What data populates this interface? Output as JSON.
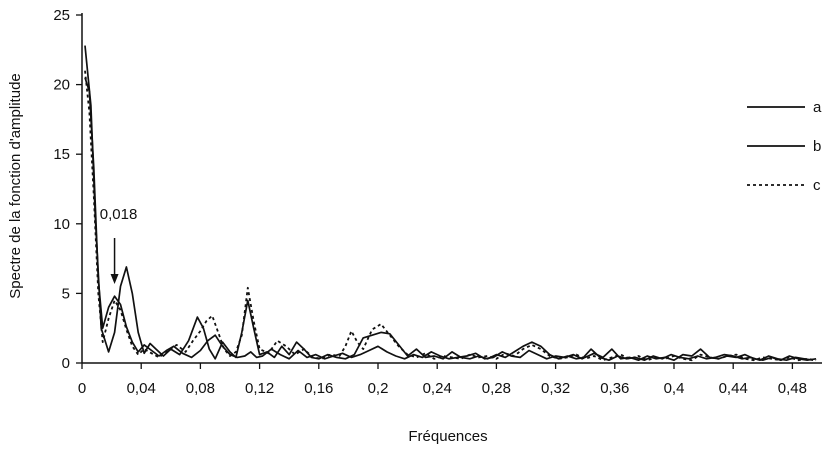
{
  "chart_data": {
    "type": "line",
    "title": "",
    "xlabel": "Fréquences",
    "ylabel": "Spectre de la fonction d'amplitude",
    "xlim": [
      0,
      0.5
    ],
    "ylim": [
      0,
      25
    ],
    "grid": false,
    "legend_position": "right",
    "x_ticks": [
      {
        "value": 0,
        "label": "0"
      },
      {
        "value": 0.04,
        "label": "0,04"
      },
      {
        "value": 0.08,
        "label": "0,08"
      },
      {
        "value": 0.12,
        "label": "0,12"
      },
      {
        "value": 0.16,
        "label": "0,16"
      },
      {
        "value": 0.2,
        "label": "0,2"
      },
      {
        "value": 0.24,
        "label": "0,24"
      },
      {
        "value": 0.28,
        "label": "0,28"
      },
      {
        "value": 0.32,
        "label": "0,32"
      },
      {
        "value": 0.36,
        "label": "0,36"
      },
      {
        "value": 0.4,
        "label": "0,4"
      },
      {
        "value": 0.44,
        "label": "0,44"
      },
      {
        "value": 0.48,
        "label": "0,48"
      }
    ],
    "y_ticks": [
      {
        "value": 0,
        "label": "0"
      },
      {
        "value": 5,
        "label": "5"
      },
      {
        "value": 10,
        "label": "10"
      },
      {
        "value": 15,
        "label": "15"
      },
      {
        "value": 20,
        "label": "20"
      },
      {
        "value": 25,
        "label": "25"
      }
    ],
    "annotation": {
      "label": "0,018",
      "x": 0.022,
      "y": 5.6
    },
    "series": [
      {
        "name": "a",
        "style": "solid",
        "color": "#111111",
        "x": [
          0.002,
          0.006,
          0.009,
          0.013,
          0.018,
          0.022,
          0.026,
          0.03,
          0.034,
          0.038,
          0.042,
          0.046,
          0.05,
          0.055,
          0.06,
          0.066,
          0.072,
          0.078,
          0.082,
          0.086,
          0.09,
          0.095,
          0.1,
          0.104,
          0.108,
          0.112,
          0.116,
          0.12,
          0.125,
          0.13,
          0.135,
          0.14,
          0.145,
          0.15,
          0.155,
          0.16,
          0.166,
          0.172,
          0.178,
          0.184,
          0.19,
          0.196,
          0.202,
          0.208,
          0.214,
          0.22,
          0.226,
          0.232,
          0.238,
          0.244,
          0.25,
          0.256,
          0.262,
          0.268,
          0.274,
          0.28,
          0.286,
          0.292,
          0.298,
          0.304,
          0.31,
          0.316,
          0.322,
          0.328,
          0.334,
          0.34,
          0.346,
          0.352,
          0.358,
          0.364,
          0.37,
          0.376,
          0.382,
          0.388,
          0.394,
          0.4,
          0.406,
          0.412,
          0.418,
          0.424,
          0.43,
          0.436,
          0.442,
          0.448,
          0.454,
          0.46,
          0.466,
          0.472,
          0.478,
          0.484,
          0.49,
          0.496
        ],
        "values": [
          22.8,
          18.5,
          10.5,
          2.5,
          0.8,
          2.2,
          5.5,
          6.9,
          5.0,
          2.2,
          0.7,
          1.4,
          1.0,
          0.5,
          1.0,
          0.6,
          1.6,
          3.3,
          2.5,
          1.0,
          0.3,
          1.5,
          0.8,
          0.4,
          2.2,
          4.5,
          2.5,
          0.6,
          0.8,
          0.4,
          1.2,
          0.6,
          1.5,
          1.0,
          0.4,
          0.3,
          0.6,
          0.4,
          0.3,
          0.6,
          1.8,
          2.0,
          2.2,
          2.1,
          1.3,
          0.5,
          1.0,
          0.4,
          0.5,
          0.3,
          0.8,
          0.4,
          0.3,
          0.5,
          0.3,
          0.6,
          0.4,
          0.8,
          1.2,
          1.5,
          1.2,
          0.6,
          0.3,
          0.5,
          0.3,
          0.4,
          0.7,
          0.4,
          1.0,
          0.3,
          0.4,
          0.2,
          0.5,
          0.3,
          0.4,
          0.2,
          0.6,
          0.5,
          1.0,
          0.4,
          0.3,
          0.5,
          0.4,
          0.6,
          0.3,
          0.2,
          0.4,
          0.2,
          0.5,
          0.3,
          0.2,
          0.3
        ]
      },
      {
        "name": "b",
        "style": "solid",
        "color": "#111111",
        "x": [
          0.002,
          0.005,
          0.008,
          0.011,
          0.014,
          0.018,
          0.022,
          0.026,
          0.03,
          0.034,
          0.038,
          0.042,
          0.047,
          0.052,
          0.057,
          0.062,
          0.068,
          0.074,
          0.08,
          0.085,
          0.09,
          0.095,
          0.1,
          0.105,
          0.11,
          0.114,
          0.118,
          0.122,
          0.128,
          0.134,
          0.14,
          0.146,
          0.152,
          0.158,
          0.164,
          0.17,
          0.176,
          0.182,
          0.188,
          0.194,
          0.2,
          0.206,
          0.212,
          0.218,
          0.224,
          0.23,
          0.236,
          0.242,
          0.248,
          0.254,
          0.26,
          0.266,
          0.272,
          0.278,
          0.284,
          0.29,
          0.296,
          0.302,
          0.308,
          0.314,
          0.32,
          0.326,
          0.332,
          0.338,
          0.344,
          0.35,
          0.356,
          0.362,
          0.368,
          0.374,
          0.38,
          0.386,
          0.392,
          0.398,
          0.404,
          0.41,
          0.416,
          0.422,
          0.428,
          0.434,
          0.44,
          0.446,
          0.452,
          0.458,
          0.464,
          0.47,
          0.476,
          0.482,
          0.488,
          0.494
        ],
        "values": [
          20.5,
          19.5,
          14.0,
          6.0,
          2.5,
          4.0,
          4.8,
          4.2,
          2.6,
          1.5,
          0.8,
          1.3,
          0.9,
          0.5,
          0.9,
          1.2,
          0.7,
          0.4,
          0.9,
          1.6,
          2.0,
          1.2,
          0.6,
          0.4,
          0.5,
          0.8,
          0.4,
          0.5,
          1.0,
          0.6,
          0.3,
          0.9,
          0.4,
          0.6,
          0.3,
          0.5,
          0.7,
          0.4,
          0.6,
          0.9,
          1.2,
          0.8,
          0.5,
          0.3,
          0.6,
          0.4,
          0.8,
          0.5,
          0.3,
          0.4,
          0.5,
          0.7,
          0.3,
          0.4,
          0.8,
          0.5,
          0.4,
          0.9,
          0.6,
          0.3,
          0.5,
          0.4,
          0.6,
          0.3,
          1.0,
          0.4,
          0.2,
          0.5,
          0.3,
          0.4,
          0.2,
          0.5,
          0.3,
          0.6,
          0.4,
          0.3,
          0.5,
          0.3,
          0.4,
          0.6,
          0.5,
          0.3,
          0.4,
          0.2,
          0.5,
          0.3,
          0.2,
          0.4,
          0.3,
          0.2
        ]
      },
      {
        "name": "c",
        "style": "dashed",
        "color": "#111111",
        "x": [
          0.002,
          0.005,
          0.008,
          0.011,
          0.014,
          0.018,
          0.022,
          0.026,
          0.03,
          0.034,
          0.038,
          0.042,
          0.047,
          0.052,
          0.058,
          0.064,
          0.07,
          0.075,
          0.08,
          0.084,
          0.088,
          0.092,
          0.096,
          0.1,
          0.104,
          0.108,
          0.112,
          0.116,
          0.12,
          0.126,
          0.132,
          0.138,
          0.144,
          0.15,
          0.156,
          0.162,
          0.168,
          0.174,
          0.178,
          0.182,
          0.186,
          0.19,
          0.196,
          0.202,
          0.208,
          0.214,
          0.22,
          0.226,
          0.232,
          0.238,
          0.244,
          0.25,
          0.256,
          0.262,
          0.268,
          0.274,
          0.28,
          0.286,
          0.292,
          0.298,
          0.304,
          0.31,
          0.316,
          0.322,
          0.328,
          0.334,
          0.34,
          0.346,
          0.352,
          0.358,
          0.364,
          0.37,
          0.376,
          0.382,
          0.388,
          0.394,
          0.4,
          0.406,
          0.412,
          0.418,
          0.424,
          0.43,
          0.436,
          0.442,
          0.448,
          0.454,
          0.46,
          0.466,
          0.472,
          0.478,
          0.484,
          0.49,
          0.496
        ],
        "values": [
          21.0,
          18.0,
          12.0,
          5.0,
          1.5,
          3.2,
          4.5,
          3.8,
          2.4,
          1.2,
          0.6,
          1.0,
          0.7,
          0.4,
          0.9,
          1.3,
          0.8,
          1.6,
          2.3,
          3.0,
          3.4,
          2.2,
          1.0,
          0.5,
          0.8,
          2.0,
          5.4,
          3.0,
          1.0,
          0.7,
          1.6,
          1.2,
          0.6,
          1.0,
          0.4,
          0.3,
          0.6,
          0.5,
          1.2,
          2.3,
          1.5,
          1.0,
          2.4,
          2.8,
          2.0,
          1.2,
          0.6,
          0.4,
          0.7,
          0.3,
          0.5,
          0.4,
          0.3,
          0.6,
          0.4,
          0.5,
          0.3,
          0.7,
          0.5,
          1.0,
          1.3,
          1.0,
          0.5,
          0.3,
          0.4,
          0.6,
          0.3,
          0.5,
          0.2,
          0.4,
          0.6,
          0.3,
          0.5,
          0.2,
          0.4,
          0.3,
          0.5,
          0.3,
          0.2,
          0.6,
          0.4,
          0.3,
          0.5,
          0.6,
          0.3,
          0.2,
          0.4,
          0.3,
          0.2,
          0.4,
          0.2,
          0.3,
          0.2
        ]
      }
    ]
  }
}
